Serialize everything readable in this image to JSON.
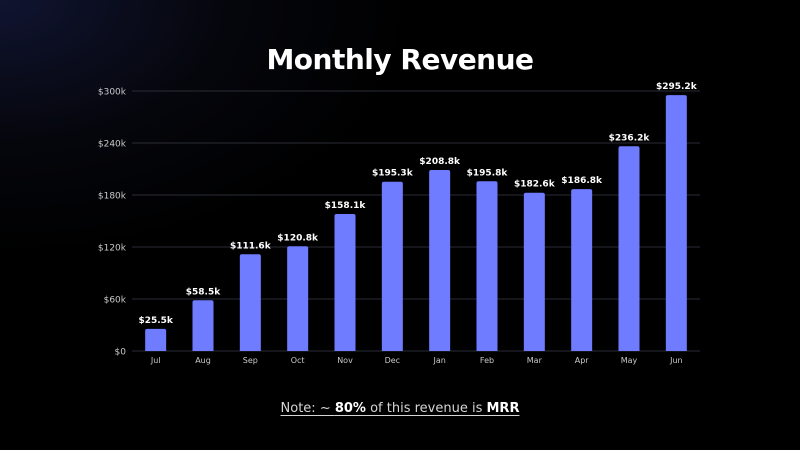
{
  "colors": {
    "bar": "#6f7cff",
    "grid": "#2a2d36",
    "axis_text": "#c9c9c9",
    "label_text": "#ffffff"
  },
  "chart_data": {
    "type": "bar",
    "title": "Monthly Revenue",
    "xlabel": "",
    "ylabel": "",
    "categories": [
      "Jul",
      "Aug",
      "Sep",
      "Oct",
      "Nov",
      "Dec",
      "Jan",
      "Feb",
      "Mar",
      "Apr",
      "May",
      "Jun"
    ],
    "values": [
      25.5,
      58.5,
      111.6,
      120.8,
      158.1,
      195.3,
      208.8,
      195.8,
      182.6,
      186.8,
      236.2,
      295.2
    ],
    "value_labels": [
      "$25.5k",
      "$58.5k",
      "$111.6k",
      "$120.8k",
      "$158.1k",
      "$195.3k",
      "$208.8k",
      "$195.8k",
      "$182.6k",
      "$186.8k",
      "$236.2k",
      "$295.2k"
    ],
    "ylim": [
      0,
      300
    ],
    "yticks": [
      0,
      60,
      120,
      180,
      240,
      300
    ],
    "ytick_labels": [
      "$0",
      "$60k",
      "$120k",
      "$180k",
      "$240k",
      "$300k"
    ],
    "grid": true,
    "legend": "none"
  },
  "note": {
    "prefix": "Note: ~ ",
    "percent": "80%",
    "middle": " of this revenue is ",
    "emphasis": "MRR"
  }
}
